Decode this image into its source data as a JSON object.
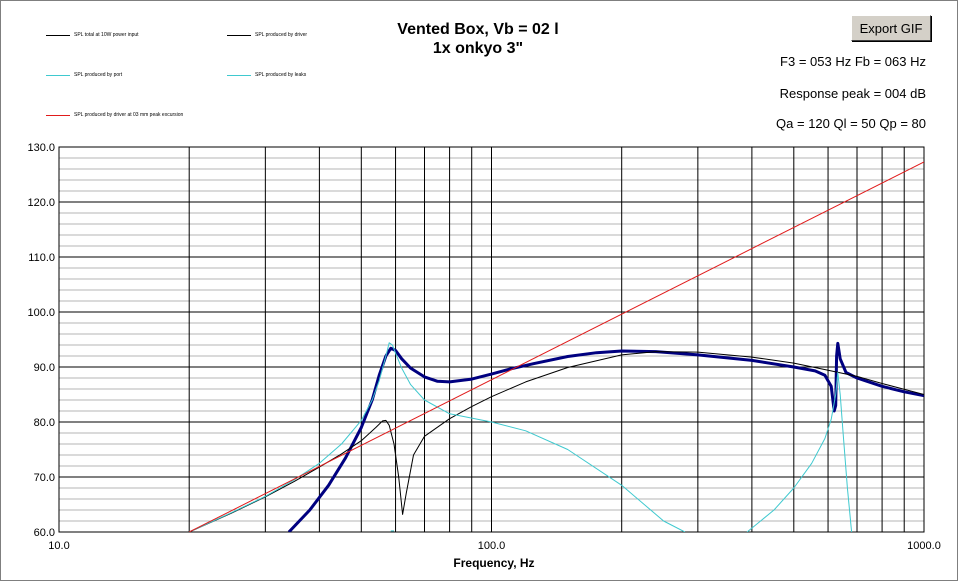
{
  "title_line1": "Vented Box, Vb = 02 l",
  "title_line2": "1x onkyo 3\"",
  "export_button": "Export GIF",
  "info": {
    "f3_fb": "F3 = 053 Hz  Fb = 063 Hz",
    "response_peak": "Response peak = 004 dB",
    "q_values": "Qa = 120  Ql = 50  Qp = 80"
  },
  "legend": [
    {
      "label": "SPL total at 10W power input",
      "color": "#000000"
    },
    {
      "label": "SPL produced by driver",
      "color": "#000000"
    },
    {
      "label": "SPL produced by port",
      "color": "#3fc9cf"
    },
    {
      "label": "SPL produced by leaks",
      "color": "#3fc9cf"
    },
    {
      "label": "SPL produced by driver at 03 mm peak excursion",
      "color": "#e01b1b"
    }
  ],
  "chart_data": {
    "type": "line",
    "title": "Vented Box, Vb = 02 l",
    "subtitle": "1x onkyo 3\"",
    "xlabel": "Frequency, Hz",
    "ylabel": "",
    "x_scale": "log",
    "xlim": [
      10,
      1000
    ],
    "ylim": [
      60,
      130
    ],
    "x_tick_labels": [
      "10.0",
      "100.0",
      "1000.0"
    ],
    "y_tick_labels": [
      "60.0",
      "70.0",
      "80.0",
      "90.0",
      "100.0",
      "110.0",
      "120.0",
      "130.0"
    ],
    "grid": true,
    "legend_position": "top-left",
    "series": [
      {
        "name": "SPL total at 10W power input",
        "color": "#000080",
        "width": 3,
        "points": [
          [
            34,
            60
          ],
          [
            38,
            64
          ],
          [
            42,
            68.5
          ],
          [
            46,
            73.5
          ],
          [
            50,
            79
          ],
          [
            53,
            84
          ],
          [
            55,
            88.5
          ],
          [
            57,
            92
          ],
          [
            58.5,
            93.4
          ],
          [
            60,
            93
          ],
          [
            62,
            91.5
          ],
          [
            65,
            89.8
          ],
          [
            70,
            88.2
          ],
          [
            75,
            87.4
          ],
          [
            80,
            87.3
          ],
          [
            90,
            87.8
          ],
          [
            100,
            88.7
          ],
          [
            110,
            89.6
          ],
          [
            125,
            90.6
          ],
          [
            150,
            91.9
          ],
          [
            175,
            92.6
          ],
          [
            200,
            92.9
          ],
          [
            240,
            92.8
          ],
          [
            300,
            92.2
          ],
          [
            400,
            91.2
          ],
          [
            500,
            90
          ],
          [
            560,
            89.3
          ],
          [
            590,
            88.5
          ],
          [
            610,
            86.5
          ],
          [
            620,
            82
          ],
          [
            625,
            83
          ],
          [
            628,
            92
          ],
          [
            632,
            94.3
          ],
          [
            640,
            91.5
          ],
          [
            660,
            89
          ],
          [
            700,
            88
          ],
          [
            800,
            86.5
          ],
          [
            900,
            85.5
          ],
          [
            1000,
            84.8
          ]
        ]
      },
      {
        "name": "SPL produced by driver",
        "color": "#000000",
        "width": 1,
        "points": [
          [
            20,
            60
          ],
          [
            25,
            63.4
          ],
          [
            30,
            66.4
          ],
          [
            35,
            69.2
          ],
          [
            40,
            71.8
          ],
          [
            45,
            74.2
          ],
          [
            50,
            76.6
          ],
          [
            54,
            79
          ],
          [
            56,
            80.2
          ],
          [
            57,
            80.3
          ],
          [
            58,
            79.4
          ],
          [
            59.5,
            76
          ],
          [
            61,
            70
          ],
          [
            62.3,
            63.2
          ],
          [
            63.5,
            67
          ],
          [
            66,
            74
          ],
          [
            70,
            77.4
          ],
          [
            80,
            80.6
          ],
          [
            90,
            82.8
          ],
          [
            100,
            84.6
          ],
          [
            120,
            87.3
          ],
          [
            150,
            89.9
          ],
          [
            200,
            92.2
          ],
          [
            240,
            92.8
          ],
          [
            300,
            92.7
          ],
          [
            400,
            91.8
          ],
          [
            500,
            90.7
          ],
          [
            600,
            89.4
          ],
          [
            700,
            88.3
          ],
          [
            800,
            87
          ],
          [
            1000,
            85
          ]
        ]
      },
      {
        "name": "SPL produced by port",
        "color": "#3fc9cf",
        "width": 1,
        "points": [
          [
            20,
            60
          ],
          [
            25,
            63.5
          ],
          [
            30,
            66.5
          ],
          [
            35,
            69.5
          ],
          [
            40,
            72.5
          ],
          [
            45,
            76
          ],
          [
            50,
            80.3
          ],
          [
            53,
            84
          ],
          [
            55,
            87.5
          ],
          [
            57,
            92
          ],
          [
            58,
            94.4
          ],
          [
            59,
            94
          ],
          [
            60,
            92.5
          ],
          [
            62,
            89.8
          ],
          [
            65,
            86.8
          ],
          [
            70,
            84
          ],
          [
            80,
            81.5
          ],
          [
            100,
            80
          ],
          [
            120,
            78.4
          ],
          [
            150,
            75
          ],
          [
            200,
            68.5
          ],
          [
            250,
            62
          ],
          [
            280,
            60
          ]
        ]
      },
      {
        "name": "SPL produced by leaks",
        "color": "#3fc9cf",
        "width": 1,
        "points": [
          [
            390,
            60
          ],
          [
            450,
            64
          ],
          [
            500,
            68
          ],
          [
            550,
            72.5
          ],
          [
            590,
            77
          ],
          [
            610,
            80.5
          ],
          [
            625,
            85
          ],
          [
            632,
            89
          ],
          [
            640,
            85
          ],
          [
            650,
            78
          ],
          [
            665,
            68
          ],
          [
            680,
            60
          ]
        ]
      },
      {
        "name": "SPL produced by driver at 03 mm peak excursion",
        "color": "#e01b1b",
        "width": 1,
        "points": [
          [
            20,
            60
          ],
          [
            1000,
            127.3
          ]
        ]
      },
      {
        "name": "",
        "color": "#3fc9cf",
        "width": 1,
        "points": [
          [
            58.5,
            60.2
          ],
          [
            59.5,
            60.2
          ]
        ]
      }
    ]
  }
}
